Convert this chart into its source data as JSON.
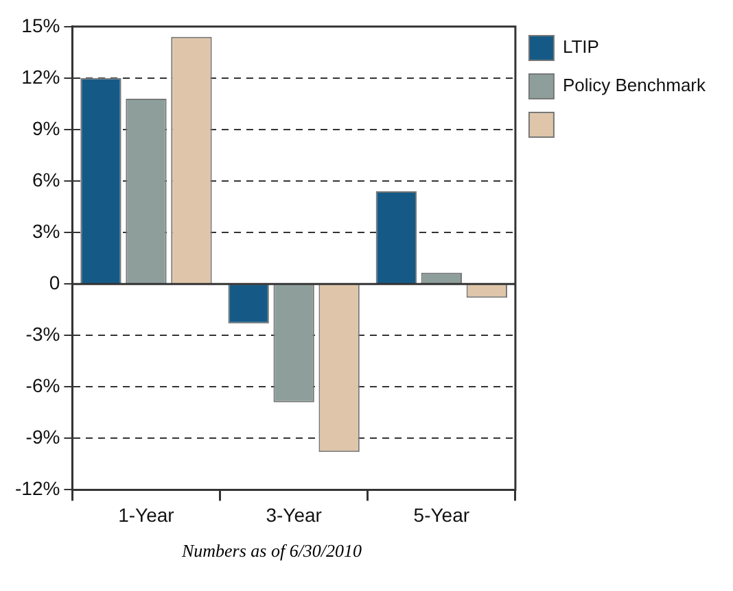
{
  "chart_data": {
    "type": "bar",
    "categories": [
      "1-Year",
      "3-Year",
      "5-Year"
    ],
    "series": [
      {
        "name": "LTIP",
        "color": "#155a87",
        "values": [
          12.0,
          -2.3,
          5.4
        ]
      },
      {
        "name": "Policy Benchmark",
        "color": "#8e9f9b",
        "values": [
          10.8,
          -6.9,
          0.65
        ]
      },
      {
        "color": "#dfc6aa",
        "values": [
          14.4,
          -9.8,
          -0.8
        ]
      }
    ],
    "ylim": [
      -12,
      15
    ],
    "yticks": [
      {
        "value": -12,
        "label": "-12%"
      },
      {
        "value": -9,
        "label": "-9%"
      },
      {
        "value": -6,
        "label": "-6%"
      },
      {
        "value": -3,
        "label": "-3%"
      },
      0,
      {
        "value": 3,
        "label": "3%"
      },
      {
        "value": 6,
        "label": "6%"
      },
      {
        "value": 9,
        "label": "9%"
      },
      {
        "value": 12,
        "label": "12%"
      },
      {
        "value": 15,
        "label": "15%"
      }
    ],
    "grid": "y",
    "legend": "top right",
    "annotations": [
      "Numbers as of 6/30/2010"
    ]
  }
}
